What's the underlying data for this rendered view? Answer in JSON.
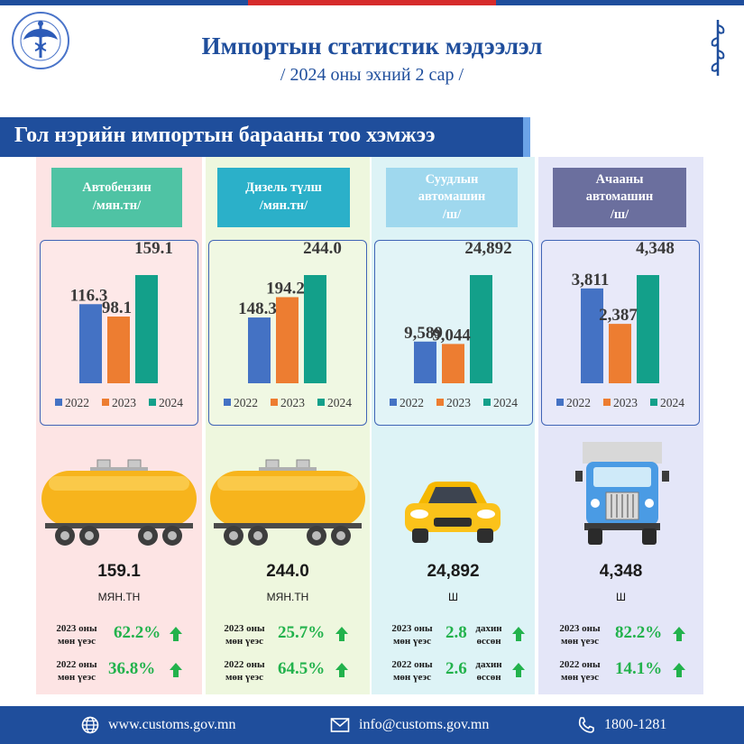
{
  "header": {
    "title": "Импортын статистик мэдээлэл",
    "subtitle": "/ 2024 оны эхний 2 сар /"
  },
  "banner": {
    "text": "Гол нэрийн импортын барааны тоо хэмжээ"
  },
  "colors": {
    "primary_blue": "#1f4e9c",
    "bar_2022": "#4472c4",
    "bar_2023": "#ed7d31",
    "bar_2024": "#13a08a",
    "increase_green": "#22b24c"
  },
  "legend": [
    "2022",
    "2023",
    "2024"
  ],
  "chart_data": [
    {
      "type": "bar",
      "title": "Автобензин /мян.тн/",
      "categories": [
        "2022",
        "2023",
        "2024"
      ],
      "values": [
        116.3,
        98.1,
        159.1
      ],
      "value_labels": [
        "116.3",
        "98.1",
        "159.1"
      ]
    },
    {
      "type": "bar",
      "title": "Дизель түлш /мян.тн/",
      "categories": [
        "2022",
        "2023",
        "2024"
      ],
      "values": [
        148.3,
        194.2,
        244.0
      ],
      "value_labels": [
        "148.3",
        "194.2",
        "244.0"
      ]
    },
    {
      "type": "bar",
      "title": "Суудлын автомашин /ш/",
      "categories": [
        "2022",
        "2023",
        "2024"
      ],
      "values": [
        9589,
        9044,
        24892
      ],
      "value_labels": [
        "9,589",
        "9,044",
        "24,892"
      ]
    },
    {
      "type": "bar",
      "title": "Ачааны автомашин /ш/",
      "categories": [
        "2022",
        "2023",
        "2024"
      ],
      "values": [
        3811,
        2387,
        4348
      ],
      "value_labels": [
        "3,811",
        "2,387",
        "4,348"
      ]
    }
  ],
  "columns": [
    {
      "category_lines": [
        "Автобензин",
        "/мян.тн/"
      ],
      "icon": "tank-wagon-icon",
      "value": "159.1",
      "unit": "МЯН.ТН",
      "comparisons": [
        {
          "label_lines": [
            "2023 оны",
            "мөн үеэс"
          ],
          "value": "62.2%"
        },
        {
          "label_lines": [
            "2022 оны",
            "мөн үеэс"
          ],
          "value": "36.8%"
        }
      ]
    },
    {
      "category_lines": [
        "Дизель түлш",
        "/мян.тн/"
      ],
      "icon": "tank-wagon-icon",
      "value": "244.0",
      "unit": "МЯН.ТН",
      "comparisons": [
        {
          "label_lines": [
            "2023 оны",
            "мөн үеэс"
          ],
          "value": "25.7%"
        },
        {
          "label_lines": [
            "2022 оны",
            "мөн үеэс"
          ],
          "value": "64.5%"
        }
      ]
    },
    {
      "category_lines": [
        "Суудлын",
        "автомашин",
        "/ш/"
      ],
      "icon": "car-icon",
      "value": "24,892",
      "unit": "Ш",
      "comparisons": [
        {
          "label_lines": [
            "2023 оны",
            "мөн үеэс"
          ],
          "value": "2.8",
          "note_lines": [
            "дахин",
            "өссөн"
          ]
        },
        {
          "label_lines": [
            "2022 оны",
            "мөн үеэс"
          ],
          "value": "2.6",
          "note_lines": [
            "дахин",
            "өссөн"
          ]
        }
      ]
    },
    {
      "category_lines": [
        "Ачааны",
        "автомашин",
        "/ш/"
      ],
      "icon": "truck-icon",
      "value": "4,348",
      "unit": "Ш",
      "comparisons": [
        {
          "label_lines": [
            "2023 оны",
            "мөн үеэс"
          ],
          "value": "82.2%"
        },
        {
          "label_lines": [
            "2022 оны",
            "мөн үеэс"
          ],
          "value": "14.1%"
        }
      ]
    }
  ],
  "footer": {
    "website": "www.customs.gov.mn",
    "email": "info@customs.gov.mn",
    "phone": "1800-1281"
  }
}
